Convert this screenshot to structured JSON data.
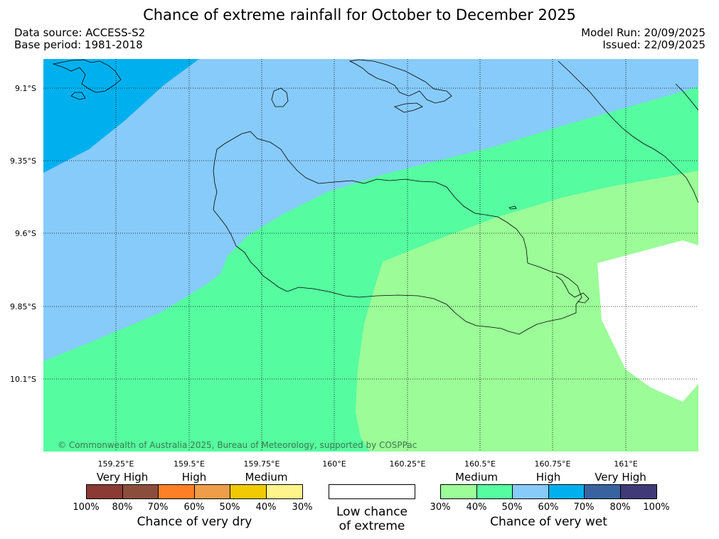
{
  "title": "Chance of extreme rainfall for October to December 2025",
  "data_source": "Data source: ACCESS-S2",
  "base_period": "Base period: 1981-2018",
  "model_run": "Model Run: 20/09/2025",
  "issued": "Issued: 22/09/2025",
  "copyright": "© Commonwealth of Australia 2025, Bureau of Meteorology, supported by COSPPac",
  "map": {
    "lat_labels": [
      "9.1°S",
      "9.35°S",
      "9.6°S",
      "9.85°S",
      "10.1°S"
    ],
    "lon_labels": [
      "159.25°E",
      "159.5°E",
      "159.75°E",
      "160°E",
      "160.25°E",
      "160.5°E",
      "160.75°E",
      "161°E"
    ],
    "colors": {
      "medium_wet": "#9bfc98",
      "medium2_wet": "#56fca0",
      "high_wet": "#87cbfb",
      "high2_wet": "#00b0ee",
      "low_chance": "#ffffff"
    }
  },
  "legend_dry": {
    "headings": [
      "Very High",
      "High",
      "Medium"
    ],
    "colors": [
      "#8c3a34",
      "#8c4e3c",
      "#ff7f27",
      "#ef9d48",
      "#f1ca04",
      "#fff48a"
    ],
    "ticks": [
      "100%",
      "80%",
      "70%",
      "60%",
      "50%",
      "40%",
      "30%"
    ],
    "caption": "Chance of very dry"
  },
  "legend_low": {
    "caption_line1": "Low chance",
    "caption_line2": "of extreme"
  },
  "legend_wet": {
    "headings": [
      "Medium",
      "High",
      "Very High"
    ],
    "colors": [
      "#9bfc98",
      "#56fca0",
      "#87cbfb",
      "#00b0ee",
      "#3962a0",
      "#403b78"
    ],
    "ticks": [
      "30%",
      "40%",
      "50%",
      "60%",
      "70%",
      "80%",
      "100%"
    ],
    "caption": "Chance of very wet"
  }
}
